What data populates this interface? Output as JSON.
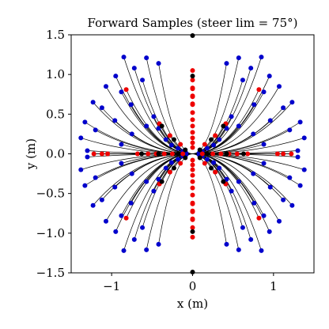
{
  "chart_data": {
    "type": "scatter",
    "title": "Forward Samples (steer lim = 75°)",
    "xlabel": "x (m)",
    "ylabel": "y (m)",
    "xlim": [
      -1.5,
      1.5
    ],
    "ylim": [
      -1.5,
      1.5
    ],
    "xticks": [
      {
        "value": -1,
        "label": "−1"
      },
      {
        "value": 0,
        "label": "0"
      },
      {
        "value": 1,
        "label": "1"
      }
    ],
    "yticks": [
      {
        "value": 1.5,
        "label": "1.5"
      },
      {
        "value": 1.0,
        "label": "1.0"
      },
      {
        "value": 0.5,
        "label": "0.5"
      },
      {
        "value": 0.0,
        "label": "0.0"
      },
      {
        "value": -0.5,
        "label": "−0.5"
      },
      {
        "value": -1.0,
        "label": "−1.0"
      },
      {
        "value": -1.5,
        "label": "−1.5"
      }
    ],
    "grid": false,
    "colors": {
      "blue": "#0000cc",
      "red": "#ee0000",
      "black": "#000000",
      "path": "#000000"
    },
    "series": [
      {
        "color": "blue",
        "points": [
          [
            0.57,
            1.21
          ],
          [
            0.85,
            1.22
          ],
          [
            0.42,
            1.14
          ],
          [
            0.72,
            1.08
          ],
          [
            0.95,
            0.98
          ],
          [
            0.62,
            0.93
          ],
          [
            1.07,
            0.85
          ],
          [
            0.88,
            0.78
          ],
          [
            1.23,
            0.65
          ],
          [
            0.76,
            0.62
          ],
          [
            1.12,
            0.58
          ],
          [
            0.48,
            0.47
          ],
          [
            0.96,
            0.42
          ],
          [
            1.33,
            0.4
          ],
          [
            0.57,
            0.35
          ],
          [
            1.2,
            0.3
          ],
          [
            0.42,
            0.32
          ],
          [
            0.75,
            0.25
          ],
          [
            1.38,
            0.2
          ],
          [
            0.33,
            0.18
          ],
          [
            0.88,
            0.12
          ],
          [
            0.26,
            0.11
          ],
          [
            1.3,
            0.04
          ],
          [
            0.18,
            0.07
          ],
          [
            0.12,
            0.03
          ],
          [
            0.08,
            0.01
          ]
        ]
      },
      {
        "color": "red",
        "points": [
          [
            0,
            1.05
          ],
          [
            0,
            0.93
          ],
          [
            0,
            0.82
          ],
          [
            0,
            0.72
          ],
          [
            0,
            0.62
          ],
          [
            0,
            0.52
          ],
          [
            0,
            0.43
          ],
          [
            0,
            0.35
          ],
          [
            0,
            0.27
          ],
          [
            0,
            0.2
          ],
          [
            0,
            0.14
          ],
          [
            0,
            0.08
          ],
          [
            0,
            -0.08
          ],
          [
            0,
            -0.14
          ],
          [
            0,
            -0.2
          ],
          [
            0,
            -0.27
          ],
          [
            0,
            -0.35
          ],
          [
            0,
            -0.43
          ],
          [
            0,
            -0.52
          ],
          [
            0,
            -0.63
          ],
          [
            0,
            -0.73
          ],
          [
            0,
            -0.83
          ],
          [
            0,
            -0.93
          ],
          [
            0,
            -1.05
          ],
          [
            0.82,
            0.81
          ],
          [
            0.41,
            0.38
          ],
          [
            0.28,
            0.23
          ],
          [
            0.15,
            0.12
          ],
          [
            1.22,
            0
          ],
          [
            1.12,
            0
          ],
          [
            1.05,
            0
          ],
          [
            0.68,
            0
          ],
          [
            0.55,
            0
          ],
          [
            0.45,
            0
          ],
          [
            0.35,
            0
          ],
          [
            0.25,
            0
          ],
          [
            0.12,
            0
          ]
        ]
      },
      {
        "color": "black",
        "points": [
          [
            0,
            1.49
          ],
          [
            0,
            0.98
          ],
          [
            0,
            -0.98
          ],
          [
            0,
            -1.49
          ],
          [
            0.38,
            0.35
          ],
          [
            0.23,
            0.18
          ],
          [
            0.09,
            0.05
          ],
          [
            0.42,
            0
          ],
          [
            0.63,
            0
          ],
          [
            0.18,
            0
          ]
        ]
      }
    ]
  }
}
